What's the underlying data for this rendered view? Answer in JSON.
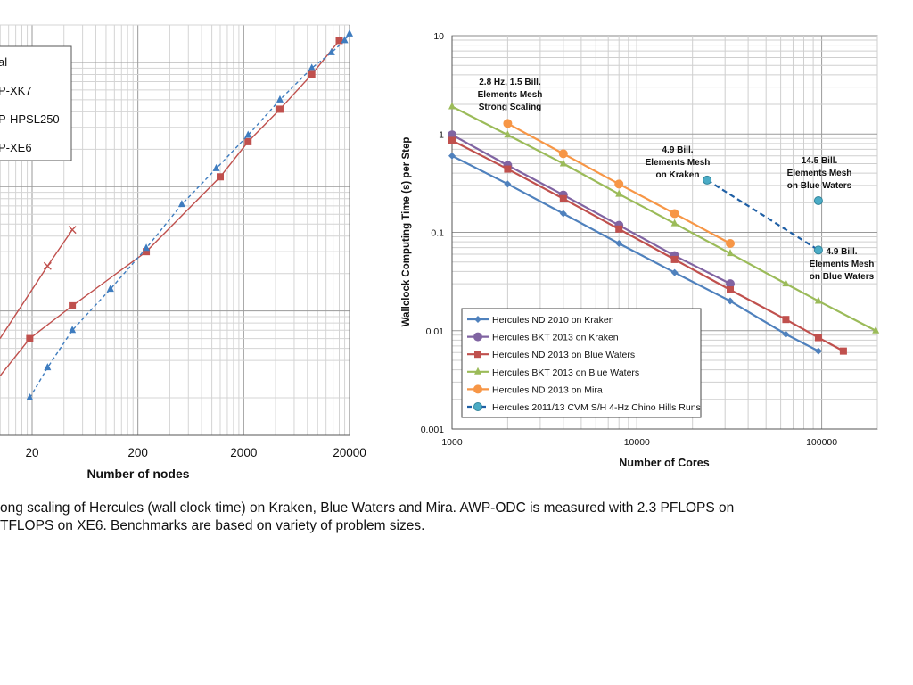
{
  "chart_data": [
    {
      "type": "line",
      "xscale": "log",
      "yscale": "log",
      "xlabel": "Number of nodes",
      "ylabel": "",
      "xticks": [
        "20",
        "200",
        "2000",
        "20000"
      ],
      "xlim": [
        2,
        20000
      ],
      "grid": true,
      "legend_position": "top-left",
      "legend": [
        "al",
        "P-XK7",
        "P-HPSL250",
        "P-XE6"
      ],
      "series": [
        {
          "name": "P-XK7",
          "color": "#c0504d",
          "marker": "x",
          "dash": "solid",
          "x": [
            48
          ],
          "y": [
            0.0
          ]
        },
        {
          "name": "P-HPSL250",
          "color": "#c0504d",
          "marker": "square",
          "dash": "solid",
          "x": [
            19,
            48,
            240,
            1200,
            2200,
            4400,
            8800,
            16000
          ],
          "y": [
            0.06,
            0.11,
            0.3,
            1.2,
            2.3,
            4.2,
            8.0,
            15.0
          ]
        },
        {
          "name": "P-XE6",
          "color": "#3e7cbf",
          "marker": "triangle",
          "dash": "dashed",
          "x": [
            19,
            28,
            48,
            110,
            240,
            520,
            1100,
            2200,
            4400,
            8800,
            13500,
            18000,
            20000
          ],
          "y": [
            0.02,
            0.035,
            0.07,
            0.15,
            0.32,
            0.72,
            1.4,
            2.6,
            5.0,
            9.0,
            12.0,
            15.0,
            17.0
          ]
        },
        {
          "name": "al",
          "color": "#c0504d",
          "marker": "x",
          "dash": "solid",
          "x": [
            28,
            48
          ],
          "y": [
            0.23,
            0.45
          ]
        }
      ]
    },
    {
      "type": "line",
      "xscale": "log",
      "yscale": "log",
      "xlabel": "Number of Cores",
      "ylabel": "Wallclock Computing Time (s) per Step",
      "xticks": [
        "1000",
        "10000",
        "100000"
      ],
      "yticks": [
        "0.001",
        "0.01",
        "0.1",
        "1",
        "10"
      ],
      "xlim": [
        1000,
        200000
      ],
      "ylim": [
        0.001,
        10
      ],
      "grid": true,
      "legend_position": "bottom-left",
      "series": [
        {
          "name": "Hercules ND 2010 on Kraken",
          "color": "#4f81bd",
          "marker": "diamond",
          "dash": "solid",
          "x": [
            1000,
            2000,
            4000,
            8000,
            16000,
            32000,
            64000,
            96000
          ],
          "y": [
            0.6,
            0.31,
            0.155,
            0.077,
            0.039,
            0.02,
            0.0092,
            0.0062
          ]
        },
        {
          "name": "Hercules BKT 2013 on Kraken",
          "color": "#8064a2",
          "marker": "circle",
          "dash": "solid",
          "x": [
            1000,
            2000,
            4000,
            8000,
            16000,
            32000
          ],
          "y": [
            0.98,
            0.48,
            0.24,
            0.118,
            0.058,
            0.03
          ]
        },
        {
          "name": "Hercules ND 2013 on Blue Waters",
          "color": "#c0504d",
          "marker": "square",
          "dash": "solid",
          "x": [
            1000,
            2000,
            4000,
            8000,
            16000,
            32000,
            64000,
            96000,
            131000
          ],
          "y": [
            0.86,
            0.44,
            0.22,
            0.108,
            0.053,
            0.026,
            0.013,
            0.0085,
            0.0062
          ]
        },
        {
          "name": "Hercules BKT 2013 on Blue Waters",
          "color": "#9bbb59",
          "marker": "triangle",
          "dash": "solid",
          "x": [
            1000,
            2000,
            4000,
            8000,
            16000,
            32000,
            64000,
            96000,
            196000
          ],
          "y": [
            1.9,
            0.98,
            0.5,
            0.245,
            0.123,
            0.061,
            0.03,
            0.02,
            0.01
          ]
        },
        {
          "name": "Hercules ND 2013 on Mira",
          "color": "#f79646",
          "marker": "circle",
          "dash": "solid",
          "x": [
            2000,
            4000,
            8000,
            16000,
            32000
          ],
          "y": [
            1.28,
            0.63,
            0.31,
            0.155,
            0.077
          ]
        },
        {
          "name": "Hercules 2011/13 CVM S/H 4-Hz Chino Hills Runs",
          "color": "#4bacc6",
          "marker": "circle",
          "dash": "dashed",
          "x": [
            24000,
            96000
          ],
          "y": [
            0.34,
            0.066
          ]
        },
        {
          "name": "",
          "color": "#4bacc6",
          "marker": "circle",
          "dash": "none",
          "x": [
            96000
          ],
          "y": [
            0.21
          ]
        }
      ],
      "annotations": [
        {
          "lines": [
            "2.8 Hz, 1.5 Bill.",
            "Elements Mesh",
            "Strong Scaling"
          ]
        },
        {
          "lines": [
            "4.9 Bill.",
            "Elements Mesh",
            "on Kraken"
          ]
        },
        {
          "lines": [
            "14.5 Bill.",
            "Elements Mesh",
            "on Blue Waters"
          ]
        },
        {
          "lines": [
            "4.9 Bill.",
            "Elements Mesh",
            "on Blue Waters"
          ]
        }
      ]
    }
  ],
  "caption": {
    "line1": "ong scaling of Hercules (wall clock time) on Kraken, Blue Waters and Mira. AWP-ODC is measured with 2.3 PFLOPS on",
    "line2": " TFLOPS on XE6. Benchmarks are based on variety of problem sizes."
  }
}
